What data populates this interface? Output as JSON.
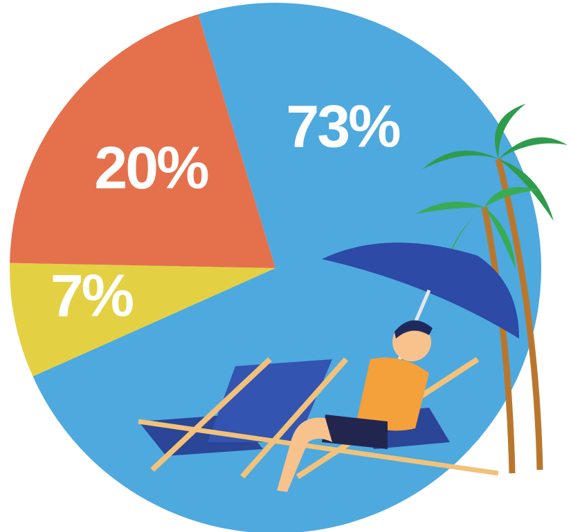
{
  "chart_data": {
    "type": "pie",
    "values": [
      73,
      7,
      20
    ],
    "value_labels": [
      "73%",
      "7%",
      "20%"
    ],
    "colors": [
      "#4ea9df",
      "#e4d043",
      "#e5714c"
    ]
  }
}
